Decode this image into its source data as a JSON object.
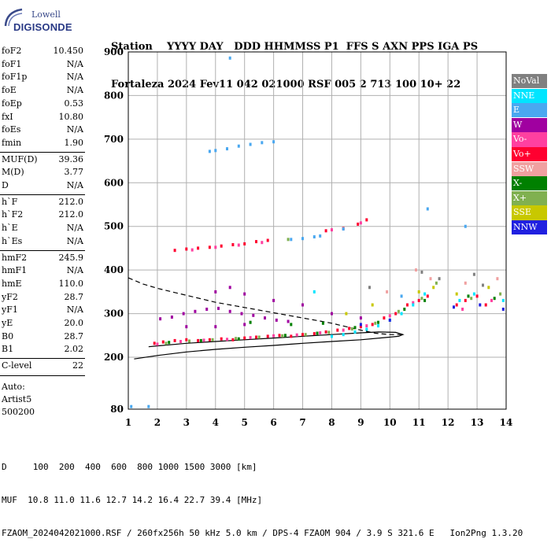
{
  "logo": {
    "line1": "Lowell",
    "line2": "DIGISONDE"
  },
  "header": {
    "line1": "Station    YYYY DAY   DDD HHMMSS P1  FFS S AXN PPS IGA PS",
    "line2": "Fortaleza 2024 Fev11 042 021000 RSF 005 2 713 100 10+ 22"
  },
  "params": {
    "group1": [
      {
        "k": "foF2",
        "v": "10.450"
      },
      {
        "k": "foF1",
        "v": "N/A"
      },
      {
        "k": "foF1p",
        "v": "N/A"
      },
      {
        "k": "foE",
        "v": "N/A"
      },
      {
        "k": "foEp",
        "v": "0.53"
      },
      {
        "k": "fxI",
        "v": "10.80"
      },
      {
        "k": "foEs",
        "v": "N/A"
      },
      {
        "k": "fmin",
        "v": "1.90"
      }
    ],
    "group2": [
      {
        "k": "MUF(D)",
        "v": "39.36"
      },
      {
        "k": "M(D)",
        "v": "3.77"
      },
      {
        "k": "D",
        "v": "N/A"
      }
    ],
    "group3": [
      {
        "k": "h`F",
        "v": "212.0"
      },
      {
        "k": "h`F2",
        "v": "212.0"
      },
      {
        "k": "h`E",
        "v": "N/A"
      },
      {
        "k": "h`Es",
        "v": "N/A"
      }
    ],
    "group4": [
      {
        "k": "hmF2",
        "v": "245.9"
      },
      {
        "k": "hmF1",
        "v": "N/A"
      },
      {
        "k": "hmE",
        "v": "110.0"
      },
      {
        "k": "yF2",
        "v": "28.7"
      },
      {
        "k": "yF1",
        "v": "N/A"
      },
      {
        "k": "yE",
        "v": "20.0"
      },
      {
        "k": "B0",
        "v": "28.7"
      },
      {
        "k": "B1",
        "v": "2.02"
      }
    ],
    "group5": [
      {
        "k": "C-level",
        "v": "22"
      }
    ]
  },
  "auto": {
    "line1": "Auto:",
    "line2": "Artist5",
    "line3": "500200"
  },
  "legend": [
    {
      "label": "NoVal",
      "color": "#808080"
    },
    {
      "label": "NNE",
      "color": "#00e5ff"
    },
    {
      "label": "E",
      "color": "#4aa8f0"
    },
    {
      "label": "W",
      "color": "#a000a0"
    },
    {
      "label": "Vo-",
      "color": "#ff40a0"
    },
    {
      "label": "Vo+",
      "color": "#ff0030"
    },
    {
      "label": "SSW",
      "color": "#f0a0a0"
    },
    {
      "label": "X-",
      "color": "#008000"
    },
    {
      "label": "X+",
      "color": "#80b050"
    },
    {
      "label": "SSE",
      "color": "#c8c800"
    },
    {
      "label": "NNW",
      "color": "#2020e0"
    }
  ],
  "footer": {
    "line1": "D     100  200  400  600  800 1000 1500 3000 [km]",
    "line2": "MUF  10.8 11.0 11.6 12.7 14.2 16.4 22.7 39.4 [MHz]",
    "line3": "FZAOM_20240420210 00.RSF / 260fx256h 50 kHz 5.0 km / DPS-4 FZAOM 904 / 3.9 S 321.6 E   Ion2Png 1.3.20"
  },
  "chart_data": {
    "type": "scatter",
    "title": "",
    "xlabel": "",
    "ylabel": "",
    "xlim": [
      1,
      14
    ],
    "ylim": [
      80,
      900
    ],
    "xticks": [
      1,
      2,
      3,
      4,
      5,
      6,
      7,
      8,
      9,
      10,
      11,
      12,
      13,
      14
    ],
    "yticks": [
      80,
      200,
      300,
      400,
      500,
      600,
      700,
      800,
      900
    ],
    "grid": true,
    "legend_position": "right",
    "series": [
      {
        "name": "Vo+",
        "color": "#ff0030",
        "points": [
          [
            1.9,
            232
          ],
          [
            2.2,
            235
          ],
          [
            2.6,
            238
          ],
          [
            3.0,
            240
          ],
          [
            3.4,
            238
          ],
          [
            3.8,
            240
          ],
          [
            4.2,
            242
          ],
          [
            4.6,
            240
          ],
          [
            5.0,
            244
          ],
          [
            5.4,
            246
          ],
          [
            5.8,
            248
          ],
          [
            6.2,
            250
          ],
          [
            6.6,
            248
          ],
          [
            7.0,
            252
          ],
          [
            7.4,
            254
          ],
          [
            7.8,
            258
          ],
          [
            8.2,
            262
          ],
          [
            8.6,
            266
          ],
          [
            9.0,
            270
          ],
          [
            9.4,
            275
          ],
          [
            9.8,
            290
          ],
          [
            10.2,
            300
          ],
          [
            10.6,
            320
          ],
          [
            11.0,
            330
          ],
          [
            11.3,
            340
          ],
          [
            12.3,
            320
          ],
          [
            12.6,
            330
          ],
          [
            13.0,
            340
          ],
          [
            13.3,
            320
          ],
          [
            2.6,
            445
          ],
          [
            3.0,
            448
          ],
          [
            3.4,
            450
          ],
          [
            3.8,
            452
          ],
          [
            4.2,
            455
          ],
          [
            4.6,
            458
          ],
          [
            5.0,
            460
          ],
          [
            5.4,
            465
          ],
          [
            5.8,
            468
          ],
          [
            7.8,
            490
          ],
          [
            8.4,
            495
          ],
          [
            8.9,
            505
          ],
          [
            9.2,
            515
          ]
        ]
      },
      {
        "name": "Vo-",
        "color": "#ff40a0",
        "points": [
          [
            2.0,
            230
          ],
          [
            2.8,
            236
          ],
          [
            3.6,
            239
          ],
          [
            4.4,
            241
          ],
          [
            5.2,
            245
          ],
          [
            6.0,
            249
          ],
          [
            6.8,
            251
          ],
          [
            7.6,
            256
          ],
          [
            8.4,
            262
          ],
          [
            9.2,
            272
          ],
          [
            10.0,
            295
          ],
          [
            10.8,
            325
          ],
          [
            12.5,
            310
          ],
          [
            13.5,
            330
          ],
          [
            3.2,
            446
          ],
          [
            4.0,
            452
          ],
          [
            4.8,
            457
          ],
          [
            5.6,
            463
          ],
          [
            8.0,
            492
          ],
          [
            9.0,
            508
          ]
        ]
      },
      {
        "name": "W",
        "color": "#a000a0",
        "points": [
          [
            2.1,
            288
          ],
          [
            2.5,
            292
          ],
          [
            2.9,
            300
          ],
          [
            3.3,
            305
          ],
          [
            3.7,
            310
          ],
          [
            4.1,
            312
          ],
          [
            4.5,
            305
          ],
          [
            4.9,
            300
          ],
          [
            5.3,
            296
          ],
          [
            5.7,
            290
          ],
          [
            6.1,
            285
          ],
          [
            6.5,
            282
          ],
          [
            4.0,
            350
          ],
          [
            4.5,
            360
          ],
          [
            5.0,
            345
          ],
          [
            6.0,
            330
          ],
          [
            7.0,
            320
          ],
          [
            8.0,
            300
          ],
          [
            9.0,
            290
          ],
          [
            3.0,
            270
          ],
          [
            4.0,
            270
          ],
          [
            5.0,
            275
          ]
        ]
      },
      {
        "name": "X+",
        "color": "#80b050",
        "points": [
          [
            2.3,
            232
          ],
          [
            3.1,
            237
          ],
          [
            3.9,
            240
          ],
          [
            4.7,
            243
          ],
          [
            5.5,
            246
          ],
          [
            6.3,
            249
          ],
          [
            7.1,
            252
          ],
          [
            7.9,
            257
          ],
          [
            8.7,
            265
          ],
          [
            9.5,
            278
          ],
          [
            10.3,
            305
          ],
          [
            11.1,
            335
          ],
          [
            11.6,
            370
          ],
          [
            12.8,
            335
          ],
          [
            13.8,
            345
          ],
          [
            6.5,
            470
          ]
        ]
      },
      {
        "name": "X-",
        "color": "#008000",
        "points": [
          [
            2.4,
            234
          ],
          [
            3.5,
            238
          ],
          [
            4.8,
            242
          ],
          [
            6.4,
            250
          ],
          [
            7.5,
            255
          ],
          [
            8.8,
            268
          ],
          [
            9.6,
            280
          ],
          [
            10.5,
            310
          ],
          [
            11.2,
            330
          ],
          [
            12.7,
            340
          ],
          [
            13.6,
            335
          ],
          [
            5.2,
            280
          ],
          [
            6.6,
            275
          ],
          [
            7.7,
            278
          ]
        ]
      },
      {
        "name": "E",
        "color": "#4aa8f0",
        "points": [
          [
            3.8,
            672
          ],
          [
            4.0,
            674
          ],
          [
            4.4,
            678
          ],
          [
            4.8,
            684
          ],
          [
            5.2,
            688
          ],
          [
            5.6,
            692
          ],
          [
            6.0,
            694
          ],
          [
            4.5,
            886
          ],
          [
            1.7,
            86
          ],
          [
            1.1,
            86
          ],
          [
            6.6,
            470
          ],
          [
            7.0,
            472
          ],
          [
            7.4,
            476
          ],
          [
            7.6,
            478
          ],
          [
            8.4,
            494
          ],
          [
            10.4,
            340
          ],
          [
            12.6,
            500
          ],
          [
            11.3,
            540
          ]
        ]
      },
      {
        "name": "NNE",
        "color": "#00e5ff",
        "points": [
          [
            8.0,
            248
          ],
          [
            8.4,
            252
          ],
          [
            8.8,
            258
          ],
          [
            9.2,
            264
          ],
          [
            9.6,
            272
          ],
          [
            10.0,
            285
          ],
          [
            10.4,
            300
          ],
          [
            10.8,
            320
          ],
          [
            11.2,
            345
          ],
          [
            12.4,
            330
          ],
          [
            12.9,
            345
          ],
          [
            13.9,
            330
          ],
          [
            7.4,
            350
          ]
        ]
      },
      {
        "name": "NNW",
        "color": "#2020e0",
        "points": [
          [
            12.2,
            315
          ],
          [
            13.1,
            320
          ],
          [
            13.9,
            310
          ],
          [
            10.0,
            285
          ],
          [
            9.0,
            275
          ]
        ]
      },
      {
        "name": "SSE",
        "color": "#c8c800",
        "points": [
          [
            11.0,
            350
          ],
          [
            11.5,
            360
          ],
          [
            12.3,
            345
          ],
          [
            13.4,
            360
          ],
          [
            8.5,
            300
          ],
          [
            9.4,
            320
          ]
        ]
      },
      {
        "name": "SSW",
        "color": "#f0a0a0",
        "points": [
          [
            10.9,
            400
          ],
          [
            11.4,
            380
          ],
          [
            12.6,
            370
          ],
          [
            13.7,
            380
          ],
          [
            9.9,
            350
          ]
        ]
      },
      {
        "name": "NoVal",
        "color": "#808080",
        "points": [
          [
            11.7,
            380
          ],
          [
            12.9,
            390
          ],
          [
            13.2,
            365
          ],
          [
            11.1,
            395
          ],
          [
            9.3,
            360
          ]
        ]
      }
    ],
    "curves": [
      {
        "name": "solid",
        "style": "solid",
        "points": [
          [
            1.2,
            196
          ],
          [
            2.0,
            204
          ],
          [
            3.0,
            212
          ],
          [
            4.0,
            218
          ],
          [
            5.0,
            223
          ],
          [
            6.0,
            227
          ],
          [
            7.0,
            232
          ],
          [
            8.0,
            236
          ],
          [
            9.0,
            240
          ],
          [
            9.8,
            245
          ],
          [
            10.3,
            248
          ],
          [
            10.45,
            252
          ],
          [
            10.2,
            257
          ],
          [
            9.6,
            258
          ],
          [
            9.0,
            256
          ],
          [
            8.0,
            252
          ],
          [
            7.0,
            248
          ],
          [
            6.0,
            244
          ],
          [
            5.0,
            240
          ],
          [
            4.0,
            236
          ],
          [
            3.0,
            232
          ],
          [
            2.0,
            226
          ],
          [
            1.7,
            224
          ]
        ]
      },
      {
        "name": "dashed",
        "style": "dashed",
        "points": [
          [
            1.0,
            382
          ],
          [
            1.5,
            368
          ],
          [
            2.0,
            358
          ],
          [
            2.5,
            350
          ],
          [
            3.0,
            342
          ],
          [
            3.5,
            334
          ],
          [
            4.0,
            326
          ],
          [
            4.5,
            320
          ],
          [
            5.0,
            314
          ],
          [
            5.5,
            308
          ],
          [
            6.0,
            302
          ],
          [
            6.5,
            296
          ],
          [
            7.0,
            290
          ],
          [
            7.5,
            284
          ],
          [
            8.0,
            278
          ],
          [
            8.5,
            270
          ],
          [
            9.0,
            262
          ],
          [
            9.5,
            255
          ],
          [
            10.0,
            252
          ],
          [
            10.4,
            252
          ]
        ]
      }
    ]
  }
}
